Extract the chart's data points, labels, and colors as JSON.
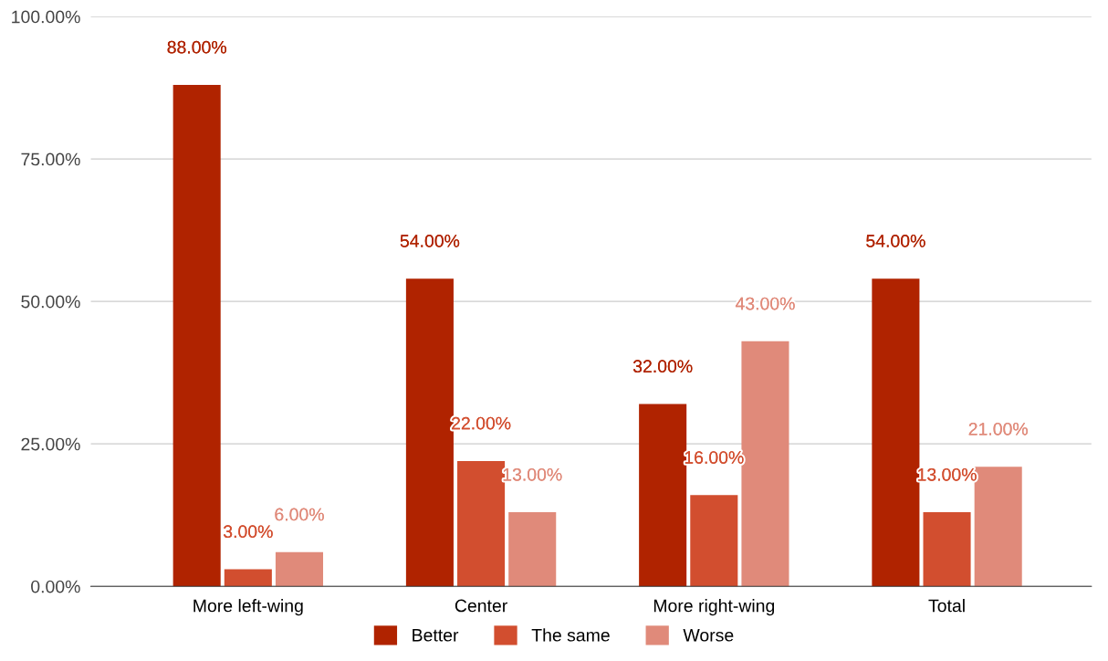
{
  "chart_data": {
    "type": "bar",
    "categories": [
      "More left-wing",
      "Center",
      "More right-wing",
      "Total"
    ],
    "series": [
      {
        "name": "Better",
        "color": "#b02300",
        "values": [
          88,
          54,
          32,
          54
        ],
        "value_labels": [
          "88.00%",
          "54.00%",
          "32.00%",
          "54.00%"
        ]
      },
      {
        "name": "The same",
        "color": "#d24e2f",
        "values": [
          3,
          22,
          16,
          13
        ],
        "value_labels": [
          "3.00%",
          "22.00%",
          "16.00%",
          "13.00%"
        ]
      },
      {
        "name": "Worse",
        "color": "#e08a7a",
        "values": [
          6,
          13,
          43,
          21
        ],
        "value_labels": [
          "6.00%",
          "13.00%",
          "43.00%",
          "21.00%"
        ]
      }
    ],
    "ylim": [
      0,
      100
    ],
    "yticks": [
      {
        "value": 0,
        "label": "0.00%"
      },
      {
        "value": 25,
        "label": "25.00%"
      },
      {
        "value": 50,
        "label": "50.00%"
      },
      {
        "value": 75,
        "label": "75.00%"
      },
      {
        "value": 100,
        "label": "100.00%"
      }
    ],
    "grid": "y",
    "legend": "bottom"
  }
}
